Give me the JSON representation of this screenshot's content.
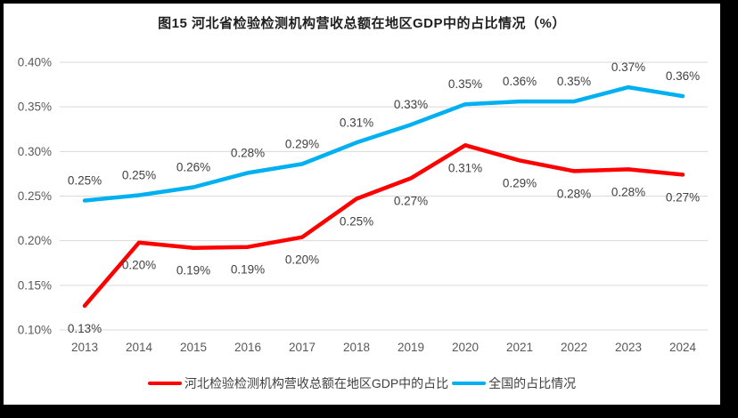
{
  "window": {
    "border_color": "#000000",
    "background_color": "#ffffff"
  },
  "chart_data": {
    "type": "line",
    "title": "图15 河北省检验检测机构营收总额在地区GDP中的占比情况（%）",
    "categories": [
      "2013",
      "2014",
      "2015",
      "2016",
      "2017",
      "2018",
      "2019",
      "2020",
      "2021",
      "2022",
      "2023",
      "2024"
    ],
    "series": [
      {
        "name": "河北检验检测机构营收总额在地区GDP中的占比",
        "color": "#FF0000",
        "values": [
          0.13,
          0.2,
          0.19,
          0.19,
          0.2,
          0.25,
          0.27,
          0.31,
          0.29,
          0.28,
          0.28,
          0.27
        ],
        "point_labels": [
          "0.13%",
          "0.20%",
          "0.19%",
          "0.19%",
          "0.20%",
          "0.25%",
          "0.27%",
          "0.31%",
          "0.29%",
          "0.28%",
          "0.28%",
          "0.27%"
        ],
        "plot_values_estimate": [
          0.127,
          0.198,
          0.192,
          0.193,
          0.204,
          0.247,
          0.27,
          0.307,
          0.29,
          0.278,
          0.28,
          0.274
        ],
        "label_side": "below"
      },
      {
        "name": "全国的占比情况",
        "color": "#00B0F0",
        "values": [
          0.25,
          0.25,
          0.26,
          0.28,
          0.29,
          0.31,
          0.33,
          0.35,
          0.36,
          0.35,
          0.37,
          0.36
        ],
        "point_labels": [
          "0.25%",
          "0.25%",
          "0.26%",
          "0.28%",
          "0.29%",
          "0.31%",
          "0.33%",
          "0.35%",
          "0.36%",
          "0.35%",
          "0.37%",
          "0.36%"
        ],
        "plot_values_estimate": [
          0.245,
          0.251,
          0.26,
          0.276,
          0.286,
          0.31,
          0.33,
          0.353,
          0.356,
          0.356,
          0.372,
          0.362
        ],
        "label_side": "above"
      }
    ],
    "yaxis": {
      "min": 0.1,
      "max": 0.4,
      "step": 0.05,
      "tick_labels": [
        "0.40%",
        "0.35%",
        "0.30%",
        "0.25%",
        "0.20%",
        "0.15%",
        "0.10%"
      ]
    },
    "grid": true,
    "legend_position": "bottom",
    "colors": {
      "gridline": "#D9D9D9",
      "axis_tick_text": "#595959",
      "data_label_text": "#404040",
      "title_text": "#1f1f1f"
    }
  }
}
